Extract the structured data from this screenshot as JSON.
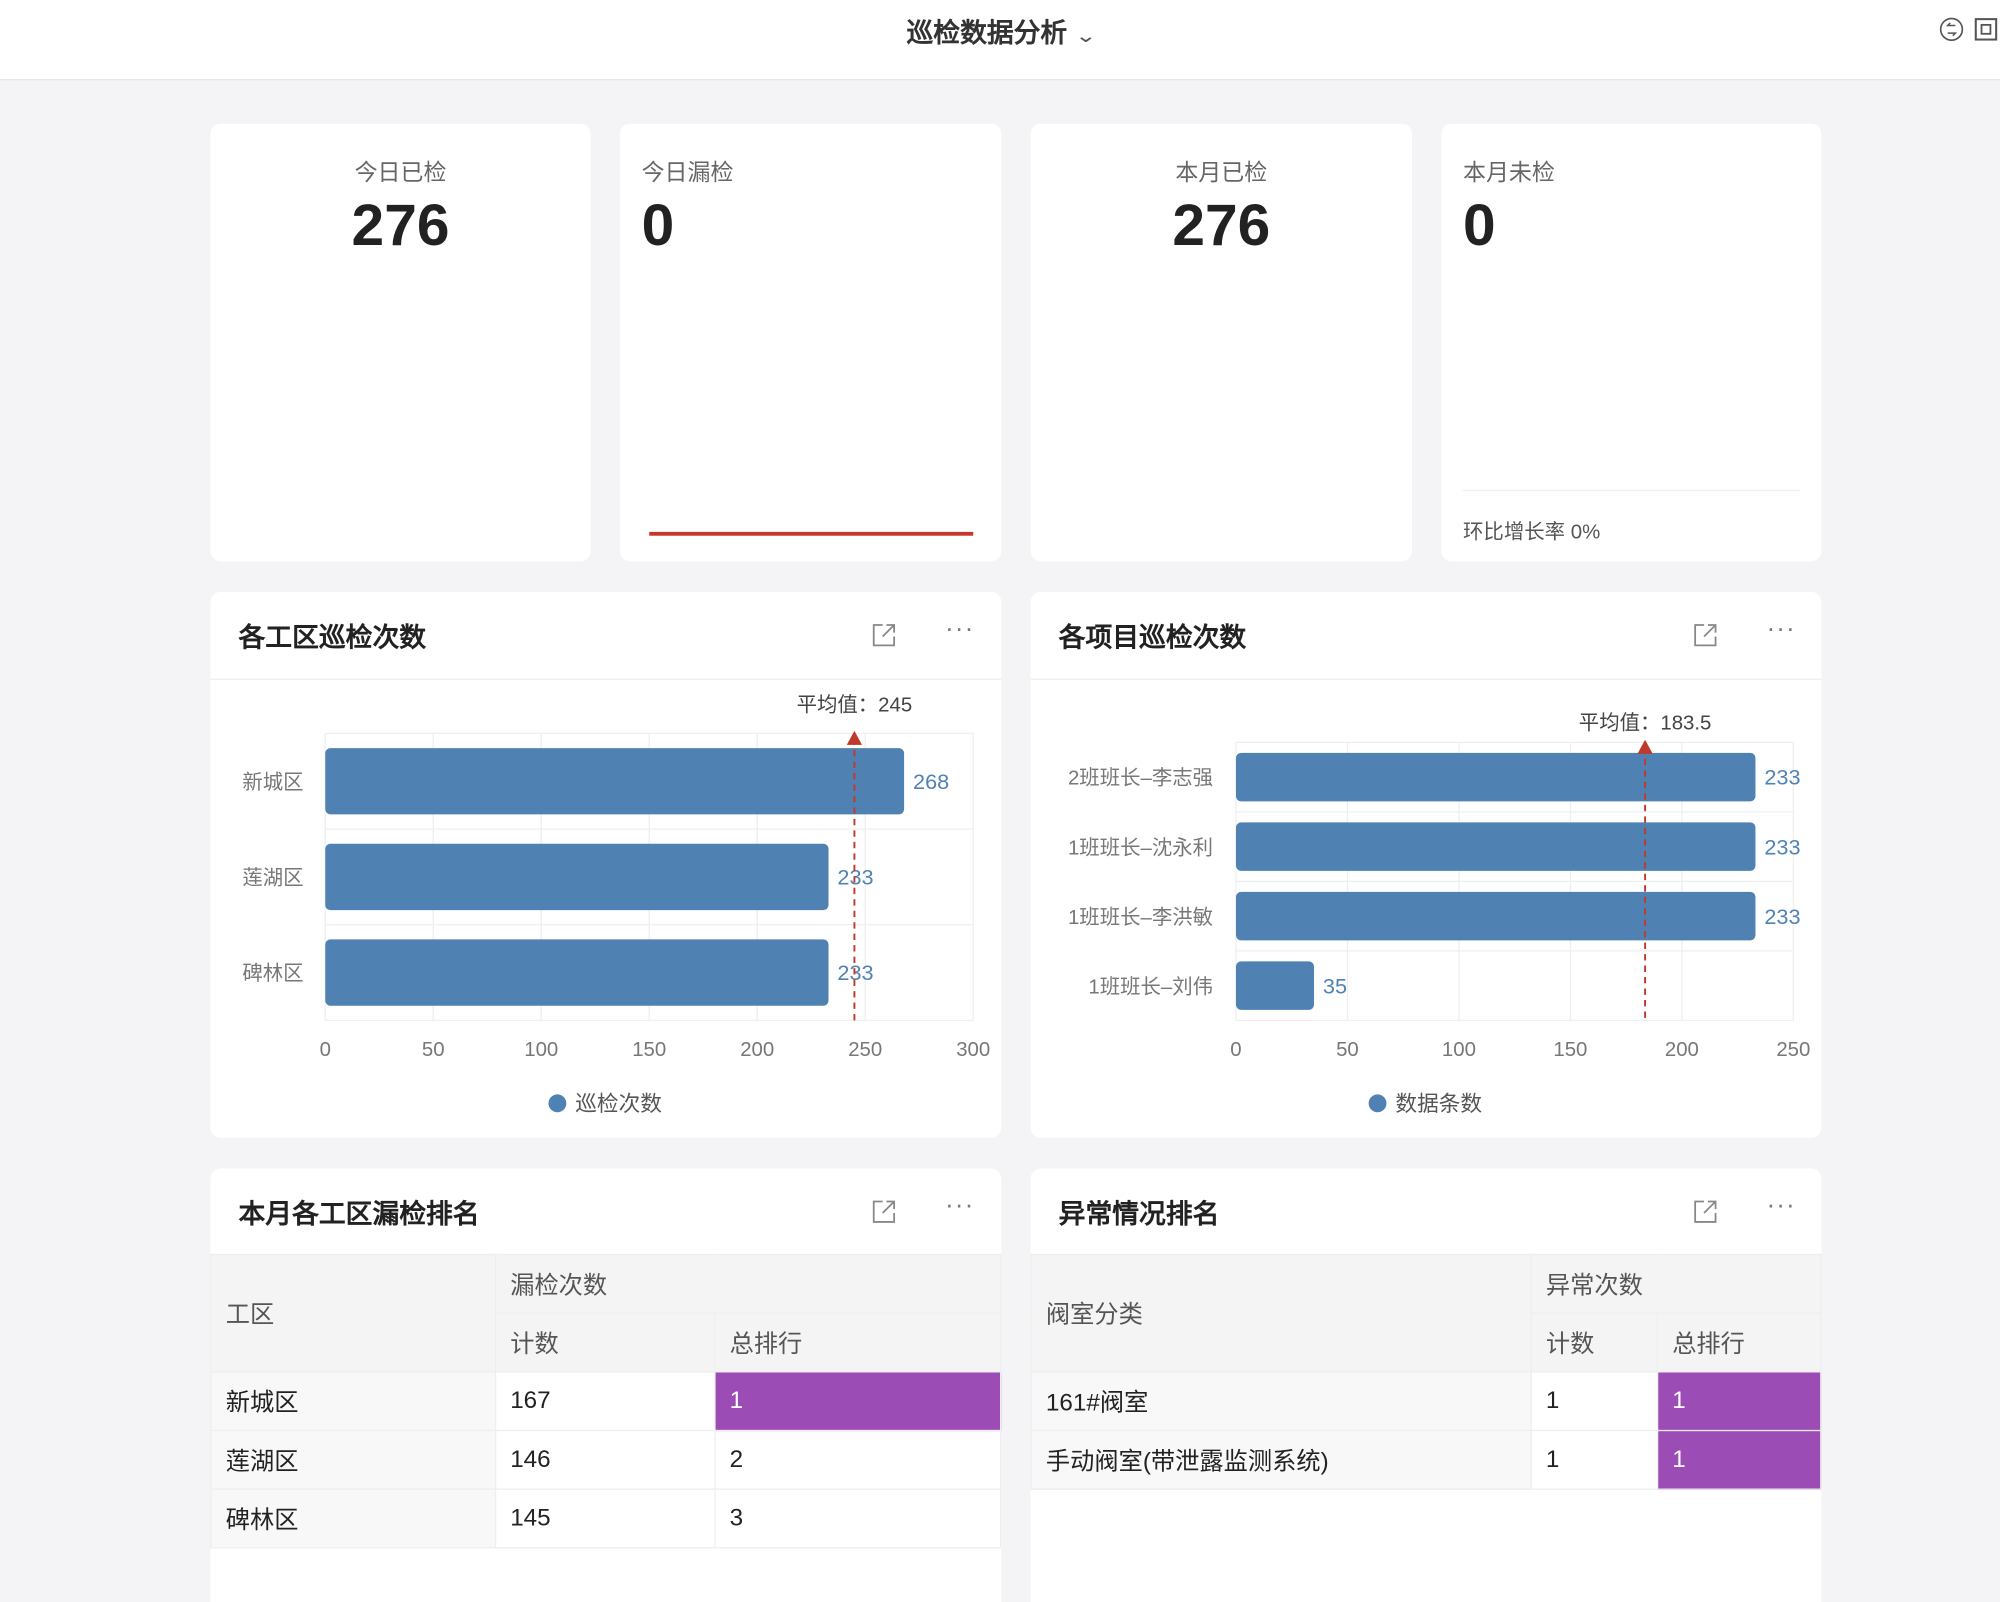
{
  "header": {
    "title": "巡检数据分析",
    "icons": [
      "switch-icon",
      "fullscreen-icon"
    ]
  },
  "kpis": [
    {
      "label": "今日已检",
      "value": "276"
    },
    {
      "label": "今日漏检",
      "value": "0"
    },
    {
      "label": "本月已检",
      "value": "276"
    },
    {
      "label": "本月未检",
      "value": "0",
      "footer": "环比增长率 0%"
    }
  ],
  "colors": {
    "bar": "#4f82b3",
    "avg_line": "#c0392b",
    "highlight": "#9b4db5",
    "kpi_line": "#c9352b"
  },
  "panels": {
    "zone_chart": {
      "title": "各工区巡检次数"
    },
    "project_chart": {
      "title": "各项目巡检次数"
    },
    "zone_table": {
      "title": "本月各工区漏检排名"
    },
    "anomaly_table": {
      "title": "异常情况排名"
    }
  },
  "chart_data": [
    {
      "type": "bar",
      "orientation": "horizontal",
      "categories": [
        "新城区",
        "莲湖区",
        "碑林区"
      ],
      "series": [
        {
          "name": "巡检次数",
          "values": [
            268,
            233,
            233
          ]
        }
      ],
      "xlim": [
        0,
        300
      ],
      "ticks": [
        "0",
        "50",
        "100",
        "150",
        "200",
        "250",
        "300"
      ],
      "average": {
        "label": "平均值：245",
        "value": 245
      },
      "legend": "bottom",
      "grid": true
    },
    {
      "type": "bar",
      "orientation": "horizontal",
      "categories": [
        "2班班长–李志强",
        "1班班长–沈永利",
        "1班班长–李洪敏",
        "1班班长–刘伟"
      ],
      "series": [
        {
          "name": "数据条数",
          "values": [
            233,
            233,
            233,
            35
          ]
        }
      ],
      "xlim": [
        0,
        250
      ],
      "ticks": [
        "0",
        "50",
        "100",
        "150",
        "200",
        "250"
      ],
      "average": {
        "label": "平均值：183.5",
        "value": 183.5
      },
      "legend": "bottom",
      "grid": true
    }
  ],
  "zone_table": {
    "headers": {
      "col1": "工区",
      "group": "漏检次数",
      "count": "计数",
      "rank": "总排行"
    },
    "rows": [
      {
        "name": "新城区",
        "count": "167",
        "rank": "1",
        "highlight": true
      },
      {
        "name": "莲湖区",
        "count": "146",
        "rank": "2",
        "highlight": false
      },
      {
        "name": "碑林区",
        "count": "145",
        "rank": "3",
        "highlight": false
      }
    ]
  },
  "anomaly_table": {
    "headers": {
      "col1": "阀室分类",
      "group": "异常次数",
      "count": "计数",
      "rank": "总排行"
    },
    "rows": [
      {
        "name": "161#阀室",
        "count": "1",
        "rank": "1",
        "highlight": true
      },
      {
        "name": "手动阀室(带泄露监测系统)",
        "count": "1",
        "rank": "1",
        "highlight": true
      }
    ]
  }
}
